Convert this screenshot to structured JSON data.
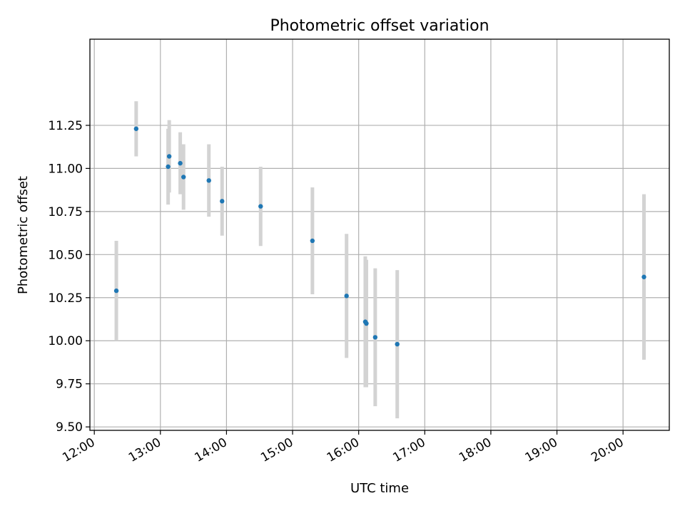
{
  "chart_data": {
    "type": "scatter",
    "title": "Photometric offset variation",
    "xlabel": "UTC time",
    "ylabel": "Photometric offset",
    "x_ticks": [
      "12:00",
      "13:00",
      "14:00",
      "15:00",
      "16:00",
      "17:00",
      "18:00",
      "19:00",
      "20:00"
    ],
    "y_ticks": [
      "9.50",
      "9.75",
      "10.00",
      "10.25",
      "10.50",
      "10.75",
      "11.00",
      "11.25"
    ],
    "xlim": [
      "11:56",
      "20:42"
    ],
    "ylim": [
      9.48,
      11.75
    ],
    "grid": true,
    "colors": {
      "points": "#1f77b4",
      "errorbars": "#d3d3d3",
      "grid": "#b0b0b0"
    },
    "points": [
      {
        "x": "12:20",
        "y": 10.29,
        "err": 0.29
      },
      {
        "x": "12:38",
        "y": 11.23,
        "err": 0.16
      },
      {
        "x": "13:07",
        "y": 11.01,
        "err": 0.22
      },
      {
        "x": "13:08",
        "y": 11.07,
        "err": 0.21
      },
      {
        "x": "13:18",
        "y": 11.03,
        "err": 0.18
      },
      {
        "x": "13:21",
        "y": 10.95,
        "err": 0.19
      },
      {
        "x": "13:44",
        "y": 10.93,
        "err": 0.21
      },
      {
        "x": "13:56",
        "y": 10.81,
        "err": 0.2
      },
      {
        "x": "14:31",
        "y": 10.78,
        "err": 0.23
      },
      {
        "x": "15:18",
        "y": 10.58,
        "err": 0.31
      },
      {
        "x": "15:49",
        "y": 10.26,
        "err": 0.36
      },
      {
        "x": "16:06",
        "y": 10.11,
        "err": 0.38
      },
      {
        "x": "16:07",
        "y": 10.1,
        "err": 0.37
      },
      {
        "x": "16:15",
        "y": 10.02,
        "err": 0.4
      },
      {
        "x": "16:35",
        "y": 9.98,
        "err": 0.43
      },
      {
        "x": "20:19",
        "y": 10.37,
        "err": 0.48
      }
    ]
  }
}
